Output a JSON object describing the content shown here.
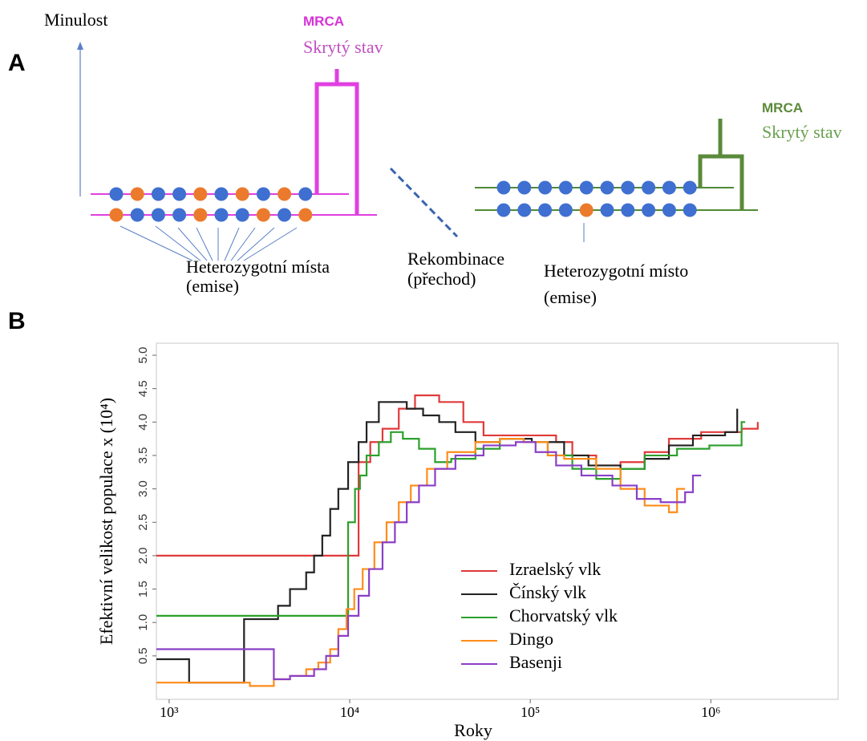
{
  "panel_labels": [
    "A",
    "B"
  ],
  "diagram": {
    "past_label": "Minulost",
    "left_mrca": "MRCA",
    "left_hidden_state": "Skrytý stav",
    "right_mrca": "MRCA",
    "right_hidden_state": "Skrytý stav",
    "left_sites": [
      "Heterozygotní místa",
      "(emise)"
    ],
    "recombination": [
      "Rekombinace",
      "(přechod)"
    ],
    "right_site": [
      "Heterozygotní místo",
      "(emise)"
    ]
  },
  "chart_data": {
    "type": "line",
    "drawstyle": "steps-post",
    "xscale": "log",
    "legend": "lower right",
    "xlabel": "Roky",
    "ylabel": "Efektivní velikost populace x (10⁴)",
    "xlim": [
      850,
      5070000
    ],
    "ylim": [
      -0.15,
      5.18
    ],
    "xticks": [
      {
        "value": 1000,
        "label": "10³"
      },
      {
        "value": 10000,
        "label": "10⁴"
      },
      {
        "value": 100000,
        "label": "10⁵"
      },
      {
        "value": 1000000,
        "label": "10⁶"
      }
    ],
    "yticks": [
      0.5,
      {
        "value": 1,
        "label": "1.0"
      },
      1.5,
      {
        "value": 2,
        "label": "2.0"
      },
      2.5,
      {
        "value": 3,
        "label": "3.0"
      },
      3.5,
      {
        "value": 4,
        "label": "4.0"
      },
      4.5,
      {
        "value": 5,
        "label": "5.0"
      }
    ],
    "series": [
      {
        "name": "Izraelský vlk",
        "color": "#e03a3a",
        "x": [
          850,
          11200,
          13000,
          15200,
          18700,
          23000,
          31300,
          42600,
          55100,
          83100,
          139000,
          171000,
          232000,
          316000,
          430000,
          586000,
          884000,
          1480000,
          1820000
        ],
        "values": [
          2.0,
          3.4,
          3.7,
          3.9,
          4.2,
          4.4,
          4.3,
          4.0,
          3.8,
          3.8,
          3.7,
          3.5,
          3.35,
          3.4,
          3.55,
          3.75,
          3.85,
          3.9,
          4.0
        ]
      },
      {
        "name": "Čínský vlk",
        "color": "#222222",
        "x": [
          850,
          1290,
          2600,
          4010,
          4670,
          5740,
          6350,
          7050,
          7800,
          8650,
          9800,
          11200,
          12400,
          14500,
          17800,
          20700,
          25500,
          31300,
          38500,
          49700,
          67800,
          102000,
          154000,
          210000,
          316000,
          430000,
          586000,
          796000,
          1200000,
          1400000
        ],
        "values": [
          0.45,
          0.1,
          1.05,
          1.25,
          1.5,
          1.75,
          2.0,
          2.3,
          2.7,
          3.0,
          3.4,
          3.7,
          4.0,
          4.3,
          4.3,
          4.2,
          4.1,
          4.0,
          3.85,
          3.7,
          3.75,
          3.7,
          3.5,
          3.35,
          3.3,
          3.45,
          3.65,
          3.8,
          3.85,
          4.2
        ]
      },
      {
        "name": "Chorvatský vlk",
        "color": "#2ca02c",
        "x": [
          850,
          9800,
          10700,
          11400,
          12400,
          14500,
          16900,
          19700,
          24200,
          29700,
          36500,
          49700,
          67800,
          92000,
          125000,
          171000,
          232000,
          316000,
          430000,
          650000,
          981000,
          1480000,
          1550000
        ],
        "values": [
          1.1,
          2.5,
          3.0,
          3.2,
          3.5,
          3.7,
          3.85,
          3.75,
          3.6,
          3.4,
          3.45,
          3.6,
          3.75,
          3.7,
          3.5,
          3.3,
          3.15,
          3.3,
          3.5,
          3.6,
          3.65,
          4.0,
          4.0
        ]
      },
      {
        "name": "Dingo",
        "color": "#ff8c1a",
        "x": [
          850,
          2800,
          3800,
          4670,
          5740,
          6700,
          7800,
          8650,
          9600,
          10600,
          11800,
          13700,
          16000,
          18700,
          21800,
          26800,
          34700,
          49700,
          67800,
          92000,
          125000,
          154000,
          232000,
          316000,
          430000,
          586000,
          650000,
          720000
        ],
        "values": [
          0.1,
          0.05,
          0.15,
          0.2,
          0.3,
          0.4,
          0.6,
          0.9,
          1.2,
          1.5,
          1.8,
          2.2,
          2.5,
          2.8,
          3.05,
          3.3,
          3.55,
          3.7,
          3.75,
          3.7,
          3.5,
          3.45,
          3.3,
          3.0,
          2.75,
          2.65,
          3.0,
          3.0
        ]
      },
      {
        "name": "Basenji",
        "color": "#8a3fc7",
        "x": [
          850,
          3800,
          4670,
          6350,
          7400,
          8650,
          9800,
          11200,
          12800,
          15200,
          17800,
          20700,
          24200,
          29700,
          38500,
          55100,
          83100,
          107000,
          139000,
          192000,
          285000,
          389000,
          527000,
          720000,
          796000,
          884000
        ],
        "values": [
          0.6,
          0.15,
          0.2,
          0.3,
          0.5,
          0.8,
          1.1,
          1.4,
          1.8,
          2.2,
          2.5,
          2.8,
          3.05,
          3.3,
          3.5,
          3.65,
          3.7,
          3.55,
          3.35,
          3.2,
          3.05,
          2.85,
          2.8,
          2.95,
          3.2,
          3.2
        ]
      }
    ]
  }
}
